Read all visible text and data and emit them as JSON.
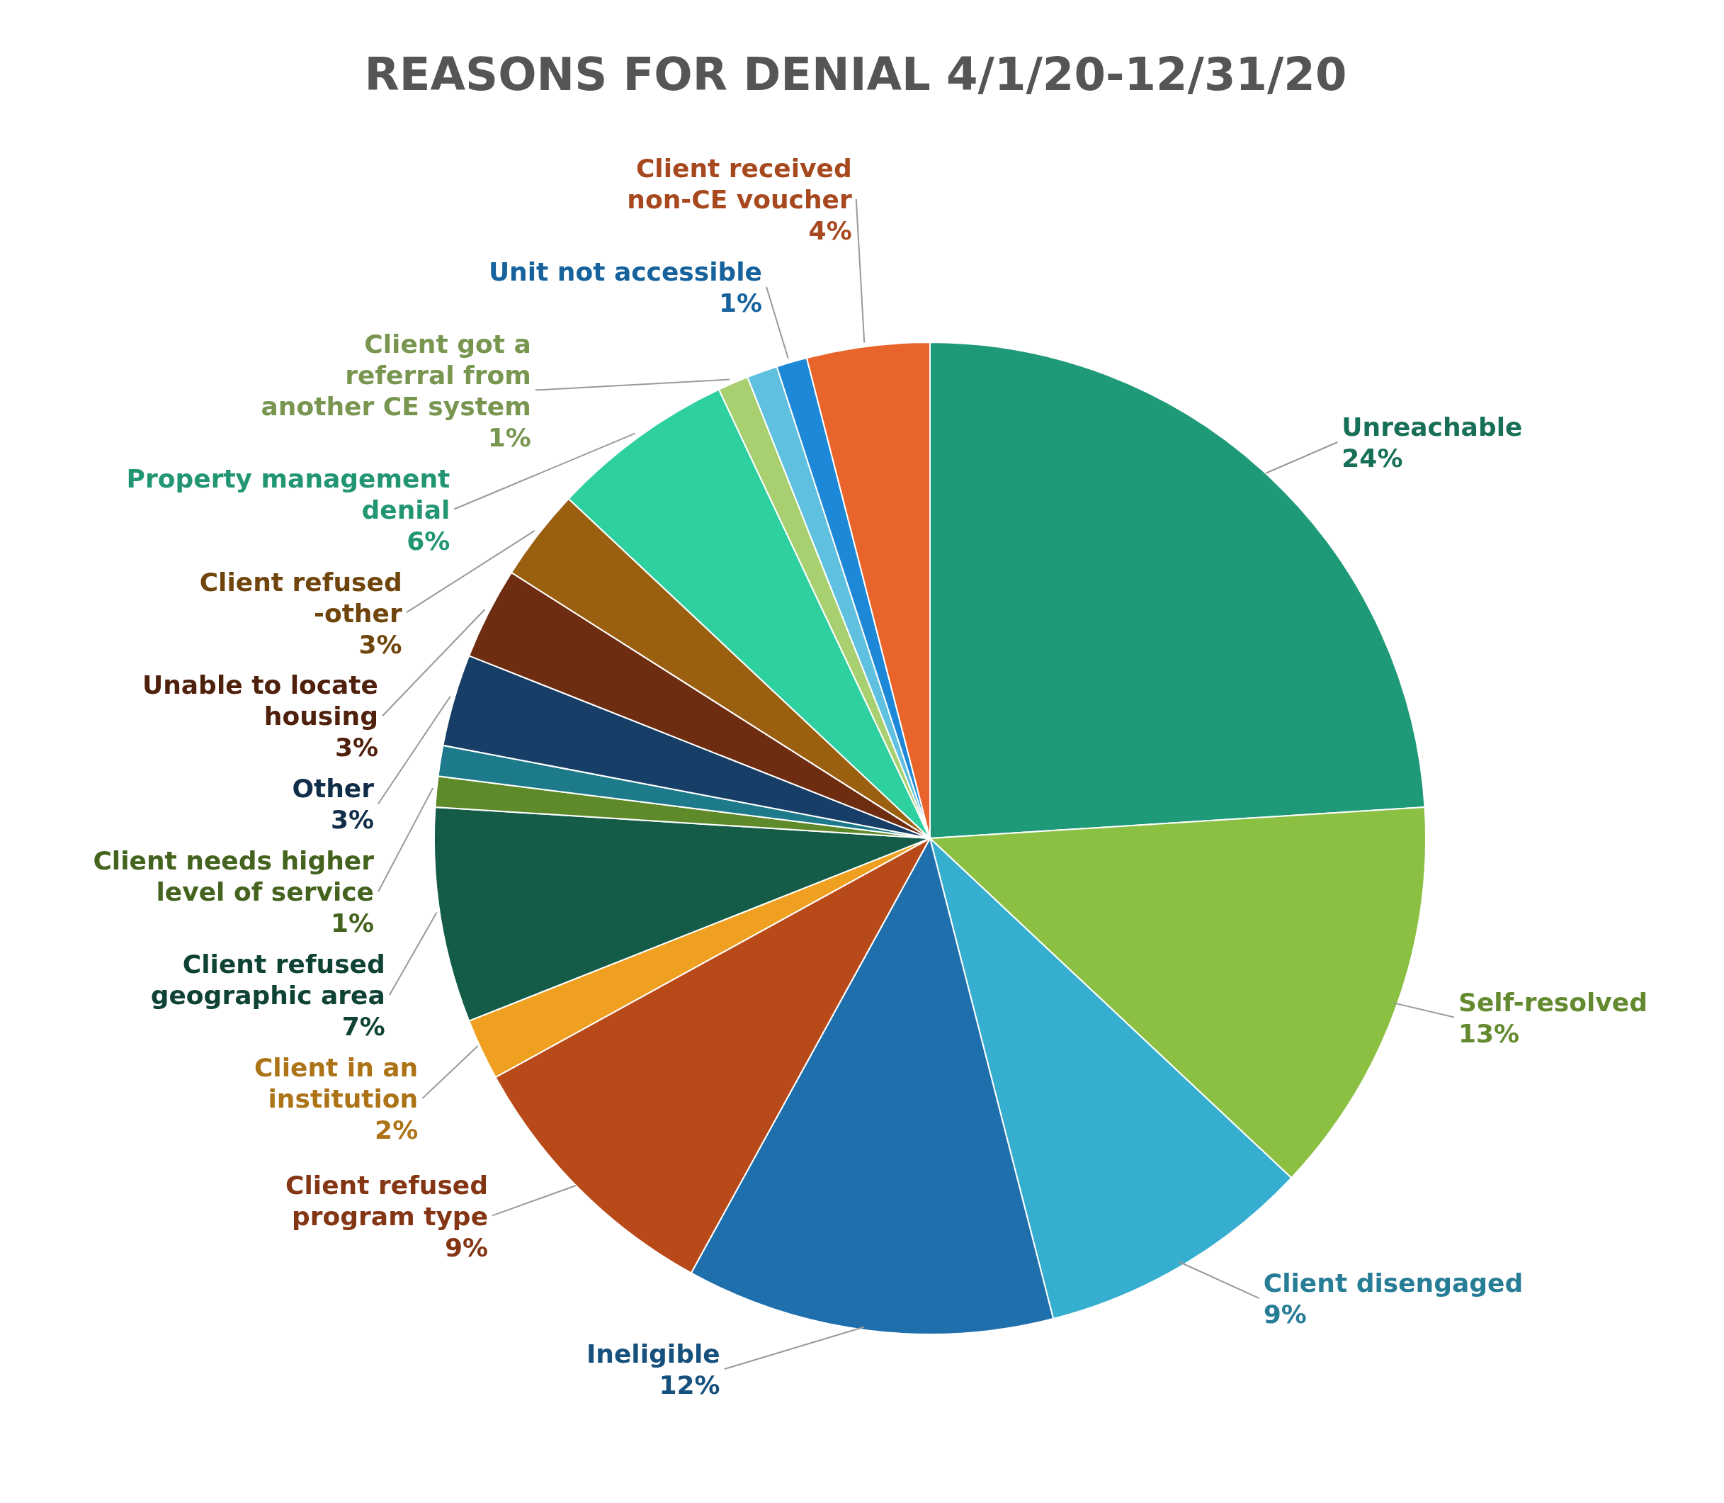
{
  "chart_data": {
    "type": "pie",
    "title": "REASONS FOR DENIAL 4/1/20-12/31/20",
    "categories": [
      "Unreachable",
      "Self-resolved",
      "Client disengaged",
      "Ineligible",
      "Client refused program type",
      "Client in an institution",
      "Client refused geographic area",
      "Client needs higher level of service",
      null,
      "Other",
      "Unable to locate housing",
      "Client refused -other",
      "Property management denial",
      "Client got a referral from another CE system",
      null,
      "Unit not accessible",
      "Client received non-CE voucher"
    ],
    "values": [
      24,
      13,
      9,
      12,
      9,
      2,
      7,
      1,
      1,
      3,
      3,
      3,
      6,
      1,
      1,
      1,
      4
    ],
    "value_labels": [
      "24%",
      "13%",
      "9%",
      "12%",
      "9%",
      "2%",
      "7%",
      "1%",
      null,
      "3%",
      "3%",
      "3%",
      "6%",
      "1%",
      null,
      "1%",
      "4%"
    ],
    "colors": [
      "#1f9a78",
      "#8bc043",
      "#36aed0",
      "#1f6fad",
      "#b84a1a",
      "#f0a020",
      "#145c48",
      "#5f8a2a",
      "#1d7a8a",
      "#163e66",
      "#6e2d10",
      "#9a6010",
      "#2fd0a0",
      "#a8d070",
      "#5fc0e0",
      "#1e88d8",
      "#e8642a"
    ]
  }
}
